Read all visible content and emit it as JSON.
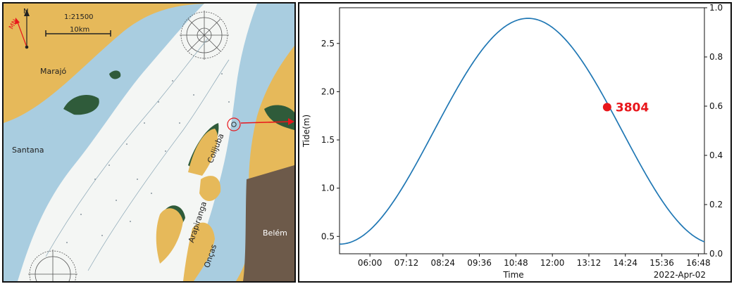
{
  "map": {
    "scale_text": "1:21500",
    "scale_bar_label": "10km",
    "north_label": "N",
    "magnetic_north_label": "MN",
    "place_names": [
      "Marajó",
      "Santana",
      "Colijuba",
      "Belém",
      "Arapiranga",
      "Onças"
    ],
    "station_marker_icon": "target-circle-icon",
    "arrow_color": "#e8161b",
    "land_color": "#e6b95a",
    "water_shallow_color": "#a9cde0",
    "water_deep_color": "#f4f6f4",
    "mangrove_color": "#2f5b3a",
    "urban_color": "#6d5a4a"
  },
  "chart_data": {
    "type": "line",
    "xlabel": "Time",
    "ylabel": "Tide(m)",
    "date_label": "2022-Apr-02",
    "x_tick_labels": [
      "06:00",
      "07:12",
      "08:24",
      "09:36",
      "10:48",
      "12:00",
      "13:12",
      "14:24",
      "15:36",
      "16:48"
    ],
    "x_tick_hours": [
      6.0,
      7.2,
      8.4,
      9.6,
      10.8,
      12.0,
      13.2,
      14.4,
      15.6,
      16.8
    ],
    "xlim_hours": [
      5.0,
      17.0
    ],
    "y_ticks": [
      0.5,
      1.0,
      1.5,
      2.0,
      2.5
    ],
    "ylim": [
      0.32,
      2.87
    ],
    "y2_ticks": [
      0.0,
      0.2,
      0.4,
      0.6,
      0.8,
      1.0
    ],
    "y2_lim": [
      0.0,
      1.0
    ],
    "line_color": "#1f77b4",
    "curve": {
      "low_value": 0.42,
      "low_time_hours": 5.0,
      "high_value": 2.76,
      "high_time_hours": 11.2,
      "end_time_hours": 17.0
    },
    "highlight_point": {
      "label": "3804",
      "time_hours": 13.8,
      "value": 1.84,
      "color": "#e8161b"
    },
    "grid": false,
    "legend": "none"
  }
}
